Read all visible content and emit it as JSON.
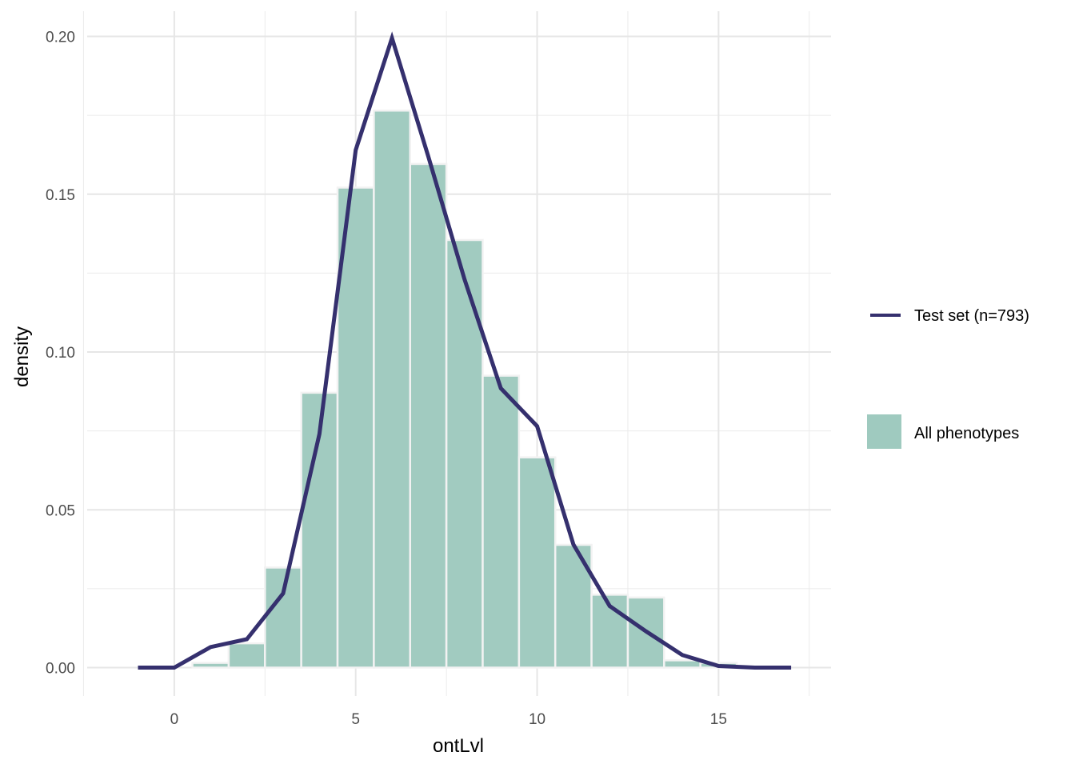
{
  "chart_data": {
    "type": "bar",
    "xlabel": "ontLvl",
    "ylabel": "density",
    "xlim": [
      -2.4,
      18.1
    ],
    "ylim": [
      -0.009,
      0.208
    ],
    "x_ticks": [
      0,
      5,
      10,
      15
    ],
    "x_tick_labels": [
      "0",
      "5",
      "10",
      "15"
    ],
    "y_ticks": [
      0,
      0.05,
      0.1,
      0.15,
      0.2
    ],
    "y_tick_labels": [
      "0.00",
      "0.05",
      "0.10",
      "0.15",
      "0.20"
    ],
    "grid": true,
    "legend_position": "right",
    "histogram": {
      "name": "All phenotypes",
      "color": "#9fcabf",
      "bin_width": 1,
      "bin_centers": [
        1,
        2,
        3,
        4,
        5,
        6,
        7,
        8,
        9,
        10,
        11,
        12,
        13,
        14,
        15
      ],
      "density": [
        0.0015,
        0.0077,
        0.0317,
        0.0871,
        0.1521,
        0.1765,
        0.1596,
        0.1355,
        0.0925,
        0.0666,
        0.0389,
        0.0231,
        0.0222,
        0.0023,
        0.0015
      ]
    },
    "line": {
      "name": "Test set (n=793)",
      "color": "#35306e",
      "x": [
        -1,
        0,
        1,
        2,
        3,
        4,
        5,
        6,
        7,
        8,
        9,
        10,
        11,
        12,
        13,
        14,
        15,
        16,
        17
      ],
      "y": [
        0,
        0,
        0.0065,
        0.009,
        0.0235,
        0.074,
        0.164,
        0.1995,
        0.162,
        0.123,
        0.0885,
        0.0765,
        0.039,
        0.0195,
        0.0115,
        0.004,
        0.0005,
        0,
        0
      ]
    },
    "legend": [
      {
        "label": "Test set (n=793)",
        "kind": "line"
      },
      {
        "label": "All phenotypes",
        "kind": "fill"
      }
    ]
  }
}
